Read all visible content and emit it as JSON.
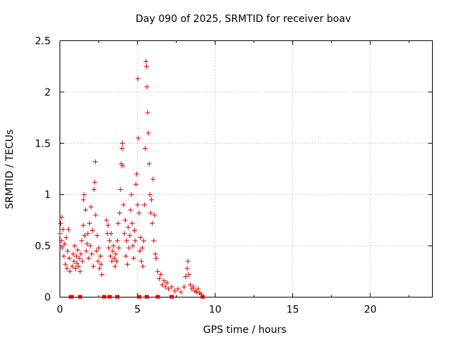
{
  "chart_data": {
    "type": "scatter",
    "title": "Day 090 of 2025, SRMTID for receiver boav",
    "xlabel": "GPS time / hours",
    "ylabel": "SRMTID / TECUs",
    "xlim": [
      0,
      24
    ],
    "ylim": [
      0,
      2.5
    ],
    "xticks": [
      0,
      5,
      10,
      15,
      20
    ],
    "yticks": [
      0,
      0.5,
      1,
      1.5,
      2,
      2.5
    ],
    "xtick_labels": [
      "0",
      "5",
      "10",
      "15",
      "20"
    ],
    "ytick_labels": [
      "0",
      "0.5",
      "1",
      "1.5",
      "2",
      "2.5"
    ],
    "grid": true,
    "series": [
      {
        "marker": "plus",
        "color": "#e00000",
        "points": [
          [
            0.0,
            0.62
          ],
          [
            0.05,
            0.72
          ],
          [
            0.1,
            0.55
          ],
          [
            0.12,
            0.78
          ],
          [
            0.15,
            0.48
          ],
          [
            0.2,
            0.66
          ],
          [
            0.25,
            0.4
          ],
          [
            0.3,
            0.52
          ],
          [
            0.35,
            0.32
          ],
          [
            0.4,
            0.58
          ],
          [
            0.45,
            0.28
          ],
          [
            0.5,
            0.45
          ],
          [
            0.55,
            0.66
          ],
          [
            0.6,
            0.38
          ],
          [
            0.65,
            0.25
          ],
          [
            0.8,
            0.3
          ],
          [
            0.85,
            0.42
          ],
          [
            0.9,
            0.35
          ],
          [
            0.95,
            0.5
          ],
          [
            1.0,
            0.28
          ],
          [
            1.05,
            0.4
          ],
          [
            1.1,
            0.33
          ],
          [
            1.15,
            0.46
          ],
          [
            1.2,
            0.3
          ],
          [
            1.25,
            0.38
          ],
          [
            1.3,
            0.25
          ],
          [
            1.35,
            0.42
          ],
          [
            1.4,
            0.55
          ],
          [
            1.45,
            0.35
          ],
          [
            1.5,
            0.7
          ],
          [
            1.52,
            0.95
          ],
          [
            1.55,
            1.0
          ],
          [
            1.6,
            0.6
          ],
          [
            1.65,
            0.85
          ],
          [
            1.7,
            0.45
          ],
          [
            1.75,
            0.52
          ],
          [
            1.8,
            0.62
          ],
          [
            1.85,
            0.38
          ],
          [
            1.9,
            0.72
          ],
          [
            1.95,
            0.5
          ],
          [
            2.0,
            0.88
          ],
          [
            2.05,
            0.42
          ],
          [
            2.1,
            0.65
          ],
          [
            2.15,
            0.3
          ],
          [
            2.2,
            1.05
          ],
          [
            2.25,
            1.12
          ],
          [
            2.28,
            1.32
          ],
          [
            2.3,
            0.8
          ],
          [
            2.35,
            0.45
          ],
          [
            2.4,
            0.6
          ],
          [
            2.45,
            0.35
          ],
          [
            2.5,
            0.48
          ],
          [
            2.55,
            0.28
          ],
          [
            2.6,
            0.4
          ],
          [
            2.65,
            0.32
          ],
          [
            2.7,
            0.22
          ],
          [
            3.0,
            0.75
          ],
          [
            3.05,
            0.62
          ],
          [
            3.1,
            0.7
          ],
          [
            3.15,
            0.48
          ],
          [
            3.2,
            0.55
          ],
          [
            3.25,
            0.4
          ],
          [
            3.3,
            0.62
          ],
          [
            3.35,
            0.35
          ],
          [
            3.4,
            0.45
          ],
          [
            3.45,
            0.5
          ],
          [
            3.5,
            0.38
          ],
          [
            3.55,
            0.3
          ],
          [
            3.6,
            0.42
          ],
          [
            3.65,
            0.35
          ],
          [
            3.7,
            0.55
          ],
          [
            3.75,
            0.72
          ],
          [
            3.8,
            0.48
          ],
          [
            3.85,
            0.82
          ],
          [
            3.9,
            1.05
          ],
          [
            3.95,
            1.3
          ],
          [
            4.0,
            1.45
          ],
          [
            4.02,
            1.5
          ],
          [
            4.05,
            1.28
          ],
          [
            4.1,
            0.9
          ],
          [
            4.15,
            0.62
          ],
          [
            4.2,
            0.75
          ],
          [
            4.25,
            0.4
          ],
          [
            4.3,
            0.55
          ],
          [
            4.35,
            0.32
          ],
          [
            4.4,
            0.68
          ],
          [
            4.45,
            0.48
          ],
          [
            4.5,
            0.6
          ],
          [
            4.55,
            0.85
          ],
          [
            4.6,
            1.0
          ],
          [
            4.65,
            0.72
          ],
          [
            4.7,
            0.5
          ],
          [
            4.75,
            0.38
          ],
          [
            4.8,
            0.65
          ],
          [
            4.85,
            0.55
          ],
          [
            4.9,
            1.1
          ],
          [
            4.95,
            1.2
          ],
          [
            5.0,
            0.9
          ],
          [
            5.02,
            2.13
          ],
          [
            5.05,
            1.55
          ],
          [
            5.1,
            0.82
          ],
          [
            5.15,
            0.45
          ],
          [
            5.2,
            0.58
          ],
          [
            5.25,
            0.35
          ],
          [
            5.3,
            0.48
          ],
          [
            5.35,
            0.3
          ],
          [
            5.4,
            0.55
          ],
          [
            5.45,
            0.9
          ],
          [
            5.5,
            1.45
          ],
          [
            5.55,
            2.3
          ],
          [
            5.57,
            2.25
          ],
          [
            5.6,
            2.05
          ],
          [
            5.65,
            1.8
          ],
          [
            5.7,
            1.6
          ],
          [
            5.75,
            1.3
          ],
          [
            5.8,
            1.0
          ],
          [
            5.85,
            0.82
          ],
          [
            5.9,
            0.95
          ],
          [
            5.95,
            0.72
          ],
          [
            6.0,
            1.15
          ],
          [
            6.05,
            0.55
          ],
          [
            6.1,
            0.8
          ],
          [
            6.15,
            0.42
          ],
          [
            6.2,
            0.38
          ],
          [
            6.3,
            0.25
          ],
          [
            6.4,
            0.18
          ],
          [
            6.5,
            0.22
          ],
          [
            6.6,
            0.12
          ],
          [
            6.7,
            0.16
          ],
          [
            6.8,
            0.1
          ],
          [
            6.9,
            0.14
          ],
          [
            7.0,
            0.08
          ],
          [
            7.2,
            0.1
          ],
          [
            7.4,
            0.06
          ],
          [
            7.6,
            0.08
          ],
          [
            7.8,
            0.05
          ],
          [
            8.0,
            0.1
          ],
          [
            8.1,
            0.2
          ],
          [
            8.2,
            0.28
          ],
          [
            8.25,
            0.35
          ],
          [
            8.3,
            0.22
          ],
          [
            8.4,
            0.12
          ],
          [
            8.5,
            0.08
          ],
          [
            8.6,
            0.1
          ],
          [
            8.7,
            0.06
          ],
          [
            8.8,
            0.05
          ],
          [
            8.9,
            0.08
          ],
          [
            9.0,
            0.04
          ],
          [
            9.1,
            0.03
          ]
        ]
      }
    ],
    "zero_markers": [
      0.7,
      0.75,
      1.3,
      2.85,
      3.2,
      3.7,
      5.1,
      5.6,
      6.3,
      7.2,
      9.2
    ]
  }
}
